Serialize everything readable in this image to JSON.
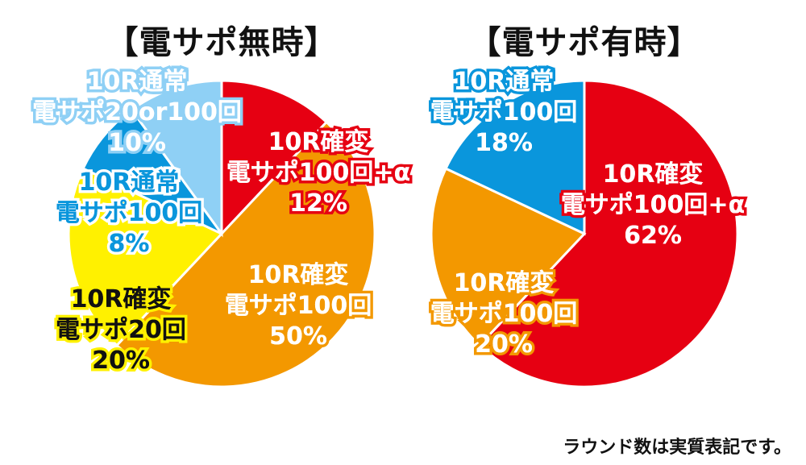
{
  "note": "ラウンド数は実質表記です。",
  "colors": {
    "red": "#e60012",
    "orange": "#f39800",
    "yellow": "#fff100",
    "blue": "#0a96dc",
    "lightblue": "#8fd0f5"
  },
  "chart_data": [
    {
      "type": "pie",
      "title": "【電サポ無時】",
      "slices": [
        {
          "line1": "10R確変",
          "line2": "電サポ100回+α",
          "pct_label": "12%",
          "value": 12,
          "color": "#e60012"
        },
        {
          "line1": "10R確変",
          "line2": "電サポ100回",
          "pct_label": "50%",
          "value": 50,
          "color": "#f39800"
        },
        {
          "line1": "10R確変",
          "line2": "電サポ20回",
          "pct_label": "20%",
          "value": 20,
          "color": "#fff100"
        },
        {
          "line1": "10R通常",
          "line2": "電サポ100回",
          "pct_label": "8%",
          "value": 8,
          "color": "#0a96dc"
        },
        {
          "line1": "10R通常",
          "line2": "電サポ20or100回",
          "pct_label": "10%",
          "value": 10,
          "color": "#8fd0f5"
        }
      ]
    },
    {
      "type": "pie",
      "title": "【電サポ有時】",
      "slices": [
        {
          "line1": "10R確変",
          "line2": "電サポ100回+α",
          "pct_label": "62%",
          "value": 62,
          "color": "#e60012"
        },
        {
          "line1": "10R確変",
          "line2": "電サポ100回",
          "pct_label": "20%",
          "value": 20,
          "color": "#f39800"
        },
        {
          "line1": "10R通常",
          "line2": "電サポ100回",
          "pct_label": "18%",
          "value": 18,
          "color": "#0a96dc"
        }
      ]
    }
  ]
}
